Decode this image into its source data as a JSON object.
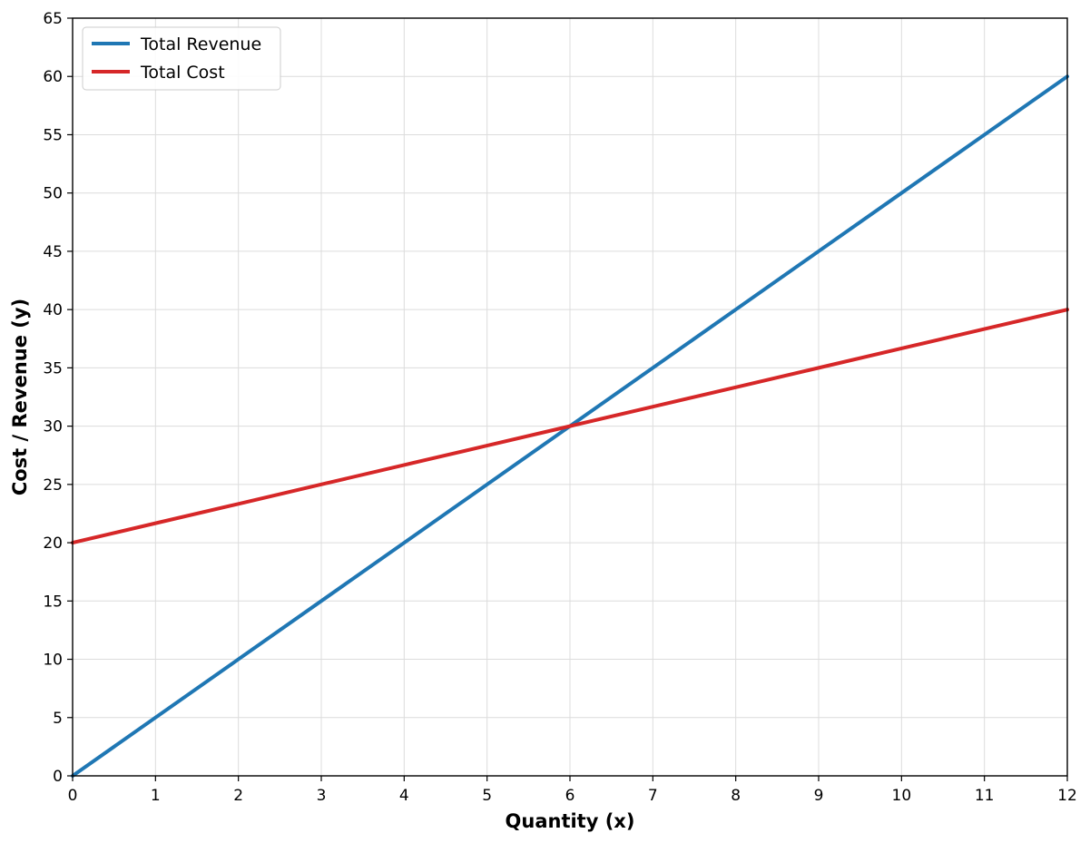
{
  "chart_data": {
    "type": "line",
    "title": "",
    "xlabel": "Quantity (x)",
    "ylabel": "Cost / Revenue (y)",
    "xlim": [
      0,
      12
    ],
    "ylim": [
      0,
      65
    ],
    "x_ticks": [
      0,
      1,
      2,
      3,
      4,
      5,
      6,
      7,
      8,
      9,
      10,
      11,
      12
    ],
    "y_ticks": [
      0,
      5,
      10,
      15,
      20,
      25,
      30,
      35,
      40,
      45,
      50,
      55,
      60,
      65
    ],
    "grid": true,
    "legend_position": "top-left",
    "x": [
      0,
      1,
      2,
      3,
      4,
      5,
      6,
      7,
      8,
      9,
      10,
      11,
      12
    ],
    "series": [
      {
        "name": "Total Revenue",
        "color": "#1f77b4",
        "values": [
          0,
          5,
          10,
          15,
          20,
          25,
          30,
          35,
          40,
          45,
          50,
          55,
          60
        ]
      },
      {
        "name": "Total Cost",
        "color": "#d62728",
        "values": [
          20,
          21.67,
          23.33,
          25,
          26.67,
          28.33,
          30,
          31.67,
          33.33,
          35,
          36.67,
          38.33,
          40
        ]
      }
    ]
  }
}
